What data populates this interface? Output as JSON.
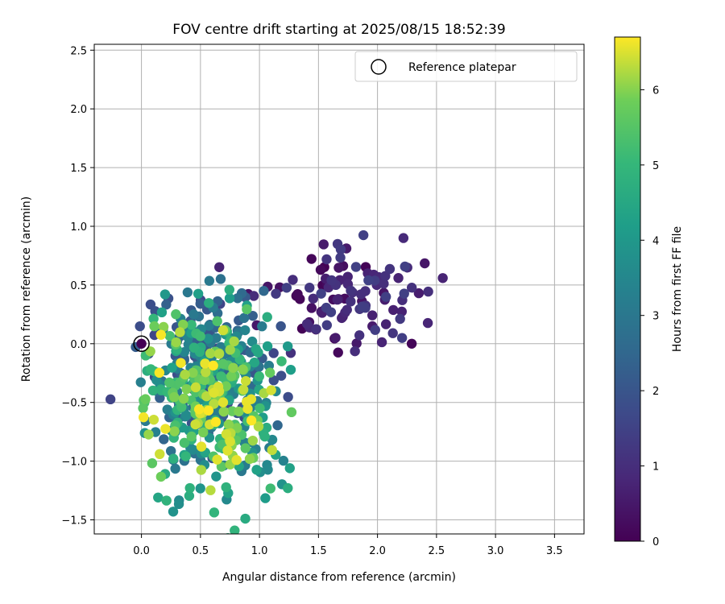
{
  "chart_data": {
    "type": "scatter",
    "title": "FOV centre drift starting at 2025/08/15 18:52:39",
    "xlabel": "Angular distance from reference (arcmin)",
    "ylabel": "Rotation from reference (arcmin)",
    "xlim": [
      -0.4,
      3.75
    ],
    "ylim": [
      -1.62,
      2.55
    ],
    "xticks": [
      "0.0",
      "0.5",
      "1.0",
      "1.5",
      "2.0",
      "2.5",
      "3.0",
      "3.5"
    ],
    "yticks": [
      "−1.5",
      "−1.0",
      "−0.5",
      "0.0",
      "0.5",
      "1.0",
      "1.5",
      "2.0",
      "2.5"
    ],
    "grid": true,
    "legend": {
      "placement": "top-right",
      "entries": [
        "Reference platepar"
      ]
    },
    "colorbar": {
      "label": "Hours from first FF file",
      "colormap": "viridis",
      "range": [
        0,
        6.7
      ],
      "ticks": [
        "0",
        "1",
        "2",
        "3",
        "4",
        "5",
        "6"
      ]
    },
    "reference_point": {
      "x": 0.0,
      "y": 0.0
    },
    "clusters": [
      {
        "name": "",
        "hours_range": [
          0.0,
          1.5
        ],
        "x_range": [
          1.0,
          2.45
        ],
        "y_range": [
          -0.1,
          0.92
        ],
        "count": 110
      },
      {
        "name": "",
        "hours_range": [
          1.5,
          3.5
        ],
        "x_range": [
          -0.05,
          1.2
        ],
        "y_range": [
          -1.0,
          0.45
        ],
        "count": 210
      },
      {
        "name": "",
        "hours_range": [
          3.0,
          5.0
        ],
        "x_range": [
          0.0,
          1.3
        ],
        "y_range": [
          -1.5,
          0.45
        ],
        "count": 150
      },
      {
        "name": "",
        "hours_range": [
          5.0,
          6.7
        ],
        "x_range": [
          0.0,
          1.2
        ],
        "y_range": [
          -1.15,
          0.25
        ],
        "count": 170
      }
    ],
    "points_sample": [
      {
        "x": 2.22,
        "y": 0.9,
        "h": 0.9
      },
      {
        "x": 2.29,
        "y": 0.0,
        "h": 0.1
      },
      {
        "x": 2.35,
        "y": 0.43,
        "h": 0.6
      },
      {
        "x": 1.12,
        "y": -0.08,
        "h": 1.6
      },
      {
        "x": 0.88,
        "y": -1.49,
        "h": 4.6
      },
      {
        "x": 1.24,
        "y": -1.23,
        "h": 4.7
      },
      {
        "x": 0.27,
        "y": -0.99,
        "h": 3.0
      },
      {
        "x": 0.2,
        "y": 0.42,
        "h": 4.0
      },
      {
        "x": 0.85,
        "y": 0.43,
        "h": 2.6
      }
    ]
  }
}
